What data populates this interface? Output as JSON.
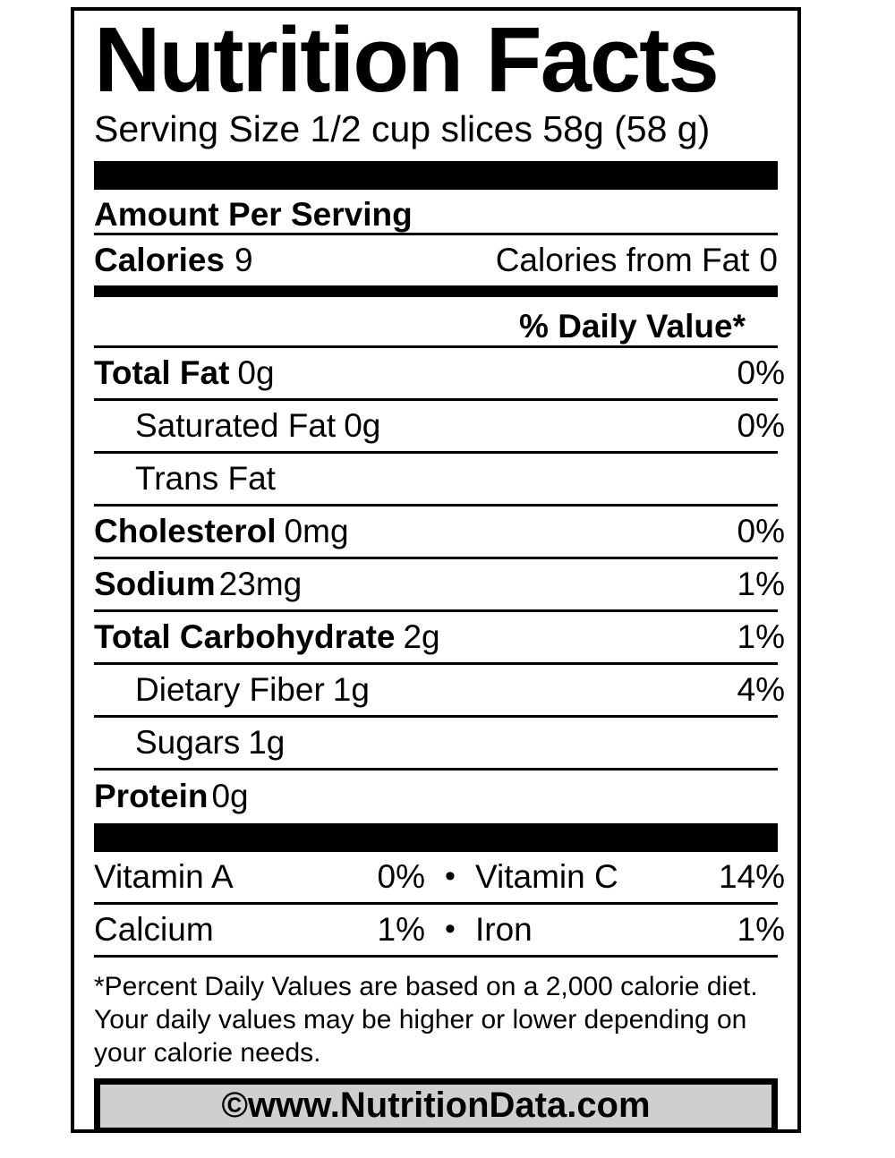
{
  "label": {
    "title": "Nutrition Facts",
    "serving_size": "Serving Size 1/2 cup slices 58g (58 g)",
    "amount_per_serving": "Amount Per Serving",
    "calories": {
      "label": "Calories",
      "value": "9"
    },
    "calories_from_fat": {
      "label": "Calories from Fat",
      "value": "0"
    },
    "daily_value_header": "% Daily Value*",
    "nutrients": [
      {
        "name": "Total Fat",
        "amount": "0g",
        "dv": "0%"
      },
      {
        "name": "Saturated Fat",
        "amount": "0g",
        "dv": "0%"
      },
      {
        "name": "Trans Fat",
        "amount": "",
        "dv": ""
      },
      {
        "name": "Cholesterol",
        "amount": "0mg",
        "dv": "0%"
      },
      {
        "name": "Sodium",
        "amount": "23mg",
        "dv": "1%"
      },
      {
        "name": "Total Carbohydrate",
        "amount": "2g",
        "dv": "1%"
      },
      {
        "name": "Dietary Fiber",
        "amount": "1g",
        "dv": "4%"
      },
      {
        "name": "Sugars",
        "amount": "1g",
        "dv": ""
      },
      {
        "name": "Protein",
        "amount": "0g",
        "dv": ""
      }
    ],
    "bullet": "•",
    "micronutrients": [
      {
        "left_name": "Vitamin A",
        "left_value": "0%",
        "right_name": "Vitamin C",
        "right_value": "14%"
      },
      {
        "left_name": "Calcium",
        "left_value": "1%",
        "right_name": "Iron",
        "right_value": "1%"
      }
    ],
    "footnote": "*Percent Daily Values are based on a 2,000 calorie diet. Your daily values may be higher or lower depending on your calorie needs.",
    "footer": "©www.NutritionData.com",
    "colors": {
      "text": "#000000",
      "background": "#ffffff",
      "footer_bg": "#cfcfcf"
    }
  }
}
